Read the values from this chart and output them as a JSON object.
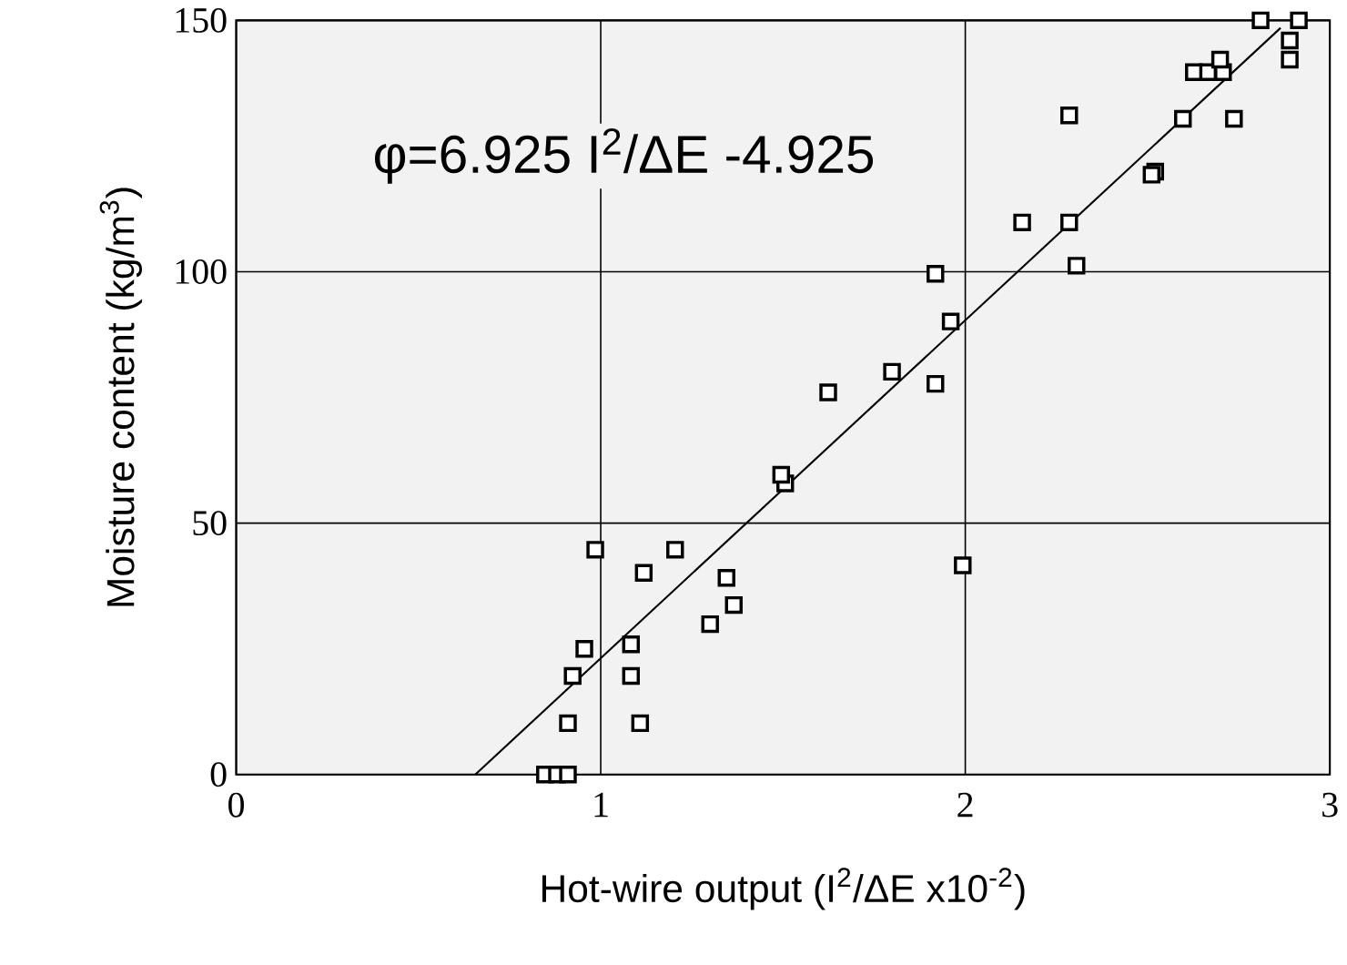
{
  "chart_data": {
    "type": "scatter",
    "xlabel": "Hot-wire output (I$^{2}$/ΔE x10$^{-2}$)",
    "ylabel": "Moisture content (kg/m$^{3}$)",
    "annotations": [
      "φ=6.925 I$^{2}$/ΔE -4.925"
    ],
    "xlim": [
      0,
      3
    ],
    "ylim": [
      0,
      150
    ],
    "xticks": [
      0,
      1,
      2,
      3
    ],
    "yticks": [
      0,
      50,
      100,
      150
    ],
    "grid": true,
    "marker": "square",
    "series": [
      {
        "color": "#000000",
        "x": [
          0.985,
          1.118,
          1.204,
          1.345,
          1.365,
          1.3,
          0.955,
          1.083,
          0.923,
          1.083,
          0.91,
          1.108,
          0.847,
          0.88,
          0.91,
          1.993,
          1.506,
          1.495,
          1.624,
          1.799,
          1.918,
          1.96,
          1.918,
          2.305,
          2.156,
          2.285,
          2.285,
          2.521,
          2.511,
          2.597,
          2.737,
          2.627,
          2.666,
          2.707,
          2.699,
          2.89,
          2.89,
          2.81,
          2.915
        ],
        "values": [
          44.7,
          40.1,
          44.7,
          39.1,
          33.7,
          29.9,
          25.0,
          25.9,
          19.6,
          19.6,
          10.2,
          10.2,
          0,
          0,
          0,
          41.6,
          57.9,
          59.6,
          76.0,
          80.1,
          77.7,
          90.1,
          99.6,
          101.2,
          109.8,
          109.8,
          131.1,
          119.9,
          119.3,
          130.4,
          130.4,
          139.7,
          139.7,
          139.7,
          142.2,
          142.2,
          146.0,
          150,
          150
        ]
      },
      {
        "type": "line",
        "color": "#000000",
        "marker": "none",
        "x": [
          0.656,
          2.865
        ],
        "values": [
          0,
          148.5
        ]
      }
    ]
  }
}
